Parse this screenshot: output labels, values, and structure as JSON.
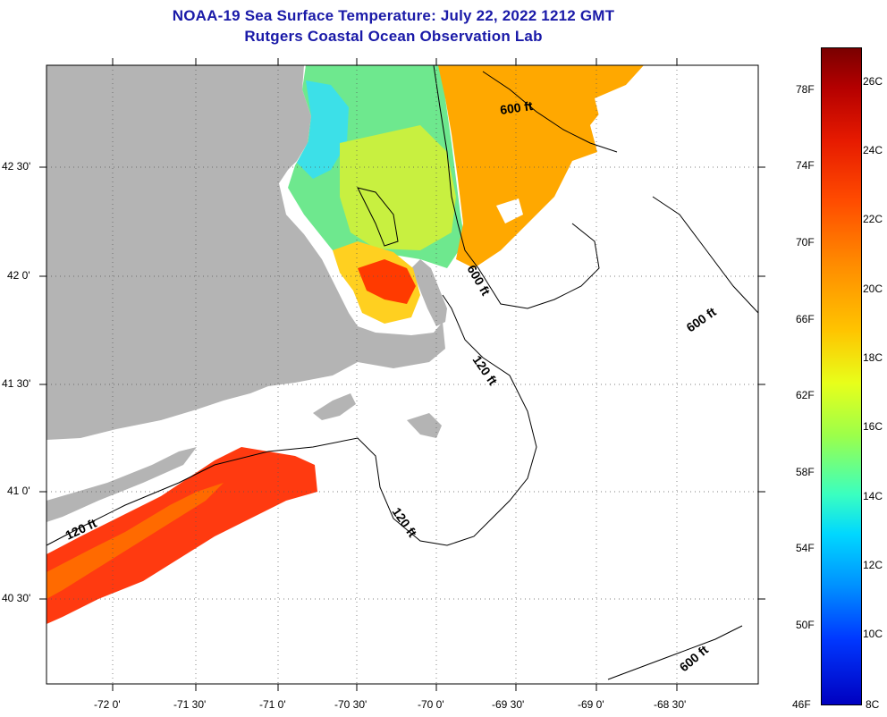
{
  "header": {
    "title": "NOAA-19 Sea Surface Temperature:  July 22, 2022 1212 GMT",
    "subtitle": "Rutgers Coastal Ocean Observation Lab"
  },
  "axes": {
    "lon_labels": [
      "-72 0'",
      "-71 30'",
      "-71 0'",
      "-70 30'",
      "-70 0'",
      "-69 30'",
      "-69 0'",
      "-68 30'"
    ],
    "lat_labels": [
      "42 30'",
      "42 0'",
      "41 30'",
      "41 0'",
      "40 30'"
    ]
  },
  "contours": {
    "c600_a": "600 ft",
    "c600_b": "600 ft",
    "c600_c": "600 ft",
    "c600_d": "600 ft",
    "c120_a": "120 ft",
    "c120_b": "120 ft",
    "c120_c": "120 ft"
  },
  "colorbar": {
    "fahrenheit": [
      "78F",
      "74F",
      "70F",
      "66F",
      "62F",
      "58F",
      "54F",
      "50F",
      "46F"
    ],
    "celsius": [
      "26C",
      "24C",
      "22C",
      "20C",
      "18C",
      "16C",
      "14C",
      "12C",
      "10C",
      "8C"
    ]
  },
  "colors": {
    "land": "#b4b4b4",
    "title": "#1a1aa8"
  }
}
